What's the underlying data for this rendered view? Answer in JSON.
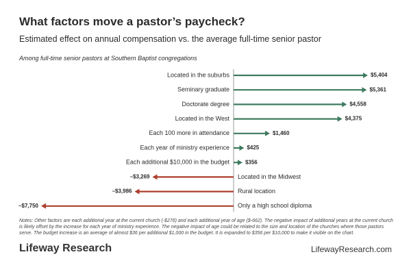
{
  "chart_data": {
    "type": "bar",
    "orientation": "horizontal",
    "title": "What factors move a pastor’s paycheck?",
    "subtitle": "Estimated effect on annual compensation vs. the average full-time senior pastor",
    "annotation": "Among full-time senior pastors at Southern Baptist congregations",
    "categories": [
      "Located in the suburbs",
      "Seminary graduate",
      "Doctorate degree",
      "Located in the West",
      "Each 100 more in attendance",
      "Each year of ministry experience",
      "Each additional $10,000 in the budget",
      "Located in the Midwest",
      "Rural location",
      "Only a high school diploma"
    ],
    "values": [
      5404,
      5361,
      4558,
      4375,
      1460,
      425,
      356,
      -3269,
      -3986,
      -7750
    ],
    "value_labels": [
      "$5,404",
      "$5,361",
      "$4,558",
      "$4,375",
      "$1,460",
      "$425",
      "$356",
      "–$3,269",
      "–$3,986",
      "–$7,750"
    ],
    "positive_color": "#3e7a5f",
    "negative_color": "#ad3f2c",
    "notes": "Notes: Other factors are each additional year at the current church (-$276) and each additional year of age ($-662). The negative impact of additional years at the current church is likely offset by the increase for each year of ministry experience. The negative impact of age could be related to the size and location of the churches where those pastors serve. The budget increase is an average of almost $36 per additional $1,000 in the budget. It is expanded to $356 per $10,000 to make it visible on the chart."
  },
  "footer": {
    "brand": "Lifeway Research",
    "website": "LifewayResearch.com"
  }
}
